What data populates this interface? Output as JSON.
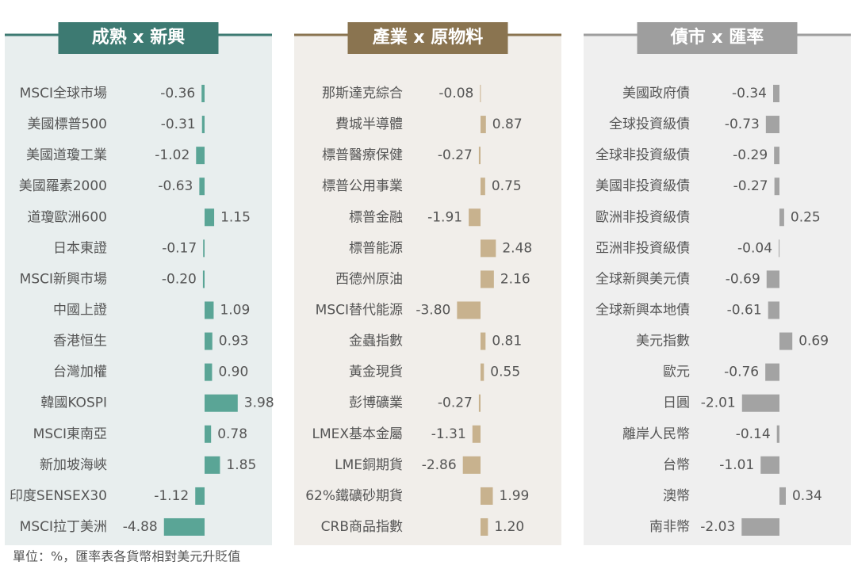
{
  "chart_data": [
    {
      "type": "hbar",
      "title": "成熟 x 新興",
      "color": "#5aa596",
      "categories": [
        "MSCI全球市場",
        "美國標普500",
        "美國道瓊工業",
        "美國羅素2000",
        "道瓊歐洲600",
        "日本東證",
        "MSCI新興市場",
        "中國上證",
        "香港恒生",
        "台灣加權",
        "韓國KOSPI",
        "MSCI東南亞",
        "新加坡海峽",
        "印度SENSEX30",
        "MSCI拉丁美洲"
      ],
      "values": [
        -0.36,
        -0.31,
        -1.02,
        -0.63,
        1.15,
        -0.17,
        -0.2,
        1.09,
        0.93,
        0.9,
        3.98,
        0.78,
        1.85,
        -1.12,
        -4.88
      ],
      "value_labels": [
        "-0.36",
        "-0.31",
        "-1.02",
        "-0.63",
        "1.15",
        "-0.17",
        "-0.20",
        "1.09",
        "0.93",
        "0.90",
        "3.98",
        "0.78",
        "1.85",
        "-1.12",
        "-4.88"
      ]
    },
    {
      "type": "hbar",
      "title": "產業 x 原物料",
      "color": "#c8b28e",
      "categories": [
        "那斯達克綜合",
        "費城半導體",
        "標普醫療保健",
        "標普公用事業",
        "標普金融",
        "標普能源",
        "西德州原油",
        "MSCI替代能源",
        "金蟲指數",
        "黃金現貨",
        "彭博礦業",
        "LMEX基本金屬",
        "LME銅期貨",
        "62%鐵礦砂期貨",
        "CRB商品指數"
      ],
      "values": [
        -0.08,
        0.87,
        -0.27,
        0.75,
        -1.91,
        2.48,
        2.16,
        -3.8,
        0.81,
        0.55,
        -0.27,
        -1.31,
        -2.86,
        1.99,
        1.2
      ],
      "value_labels": [
        "-0.08",
        "0.87",
        "-0.27",
        "0.75",
        "-1.91",
        "2.48",
        "2.16",
        "-3.80",
        "0.81",
        "0.55",
        "-0.27",
        "-1.31",
        "-2.86",
        "1.99",
        "1.20"
      ]
    },
    {
      "type": "hbar",
      "title": "債市 x 匯率",
      "color": "#a3a3a3",
      "categories": [
        "美國政府債",
        "全球投資級債",
        "全球非投資級債",
        "美國非投資級債",
        "歐洲非投資級債",
        "亞洲非投資級債",
        "全球新興美元債",
        "全球新興本地債",
        "美元指數",
        "歐元",
        "日圓",
        "離岸人民幣",
        "台幣",
        "澳幣",
        "南非幣"
      ],
      "values": [
        -0.34,
        -0.73,
        -0.29,
        -0.27,
        0.25,
        -0.04,
        -0.69,
        -0.61,
        0.69,
        -0.76,
        -2.01,
        -0.14,
        -1.01,
        0.34,
        -2.03
      ],
      "value_labels": [
        "-0.34",
        "-0.73",
        "-0.29",
        "-0.27",
        "0.25",
        "-0.04",
        "-0.69",
        "-0.61",
        "0.69",
        "-0.76",
        "-2.01",
        "-0.14",
        "-1.01",
        "0.34",
        "-2.03"
      ]
    }
  ],
  "footnote": "單位：%，匯率表各貨幣相對美元升貶值"
}
